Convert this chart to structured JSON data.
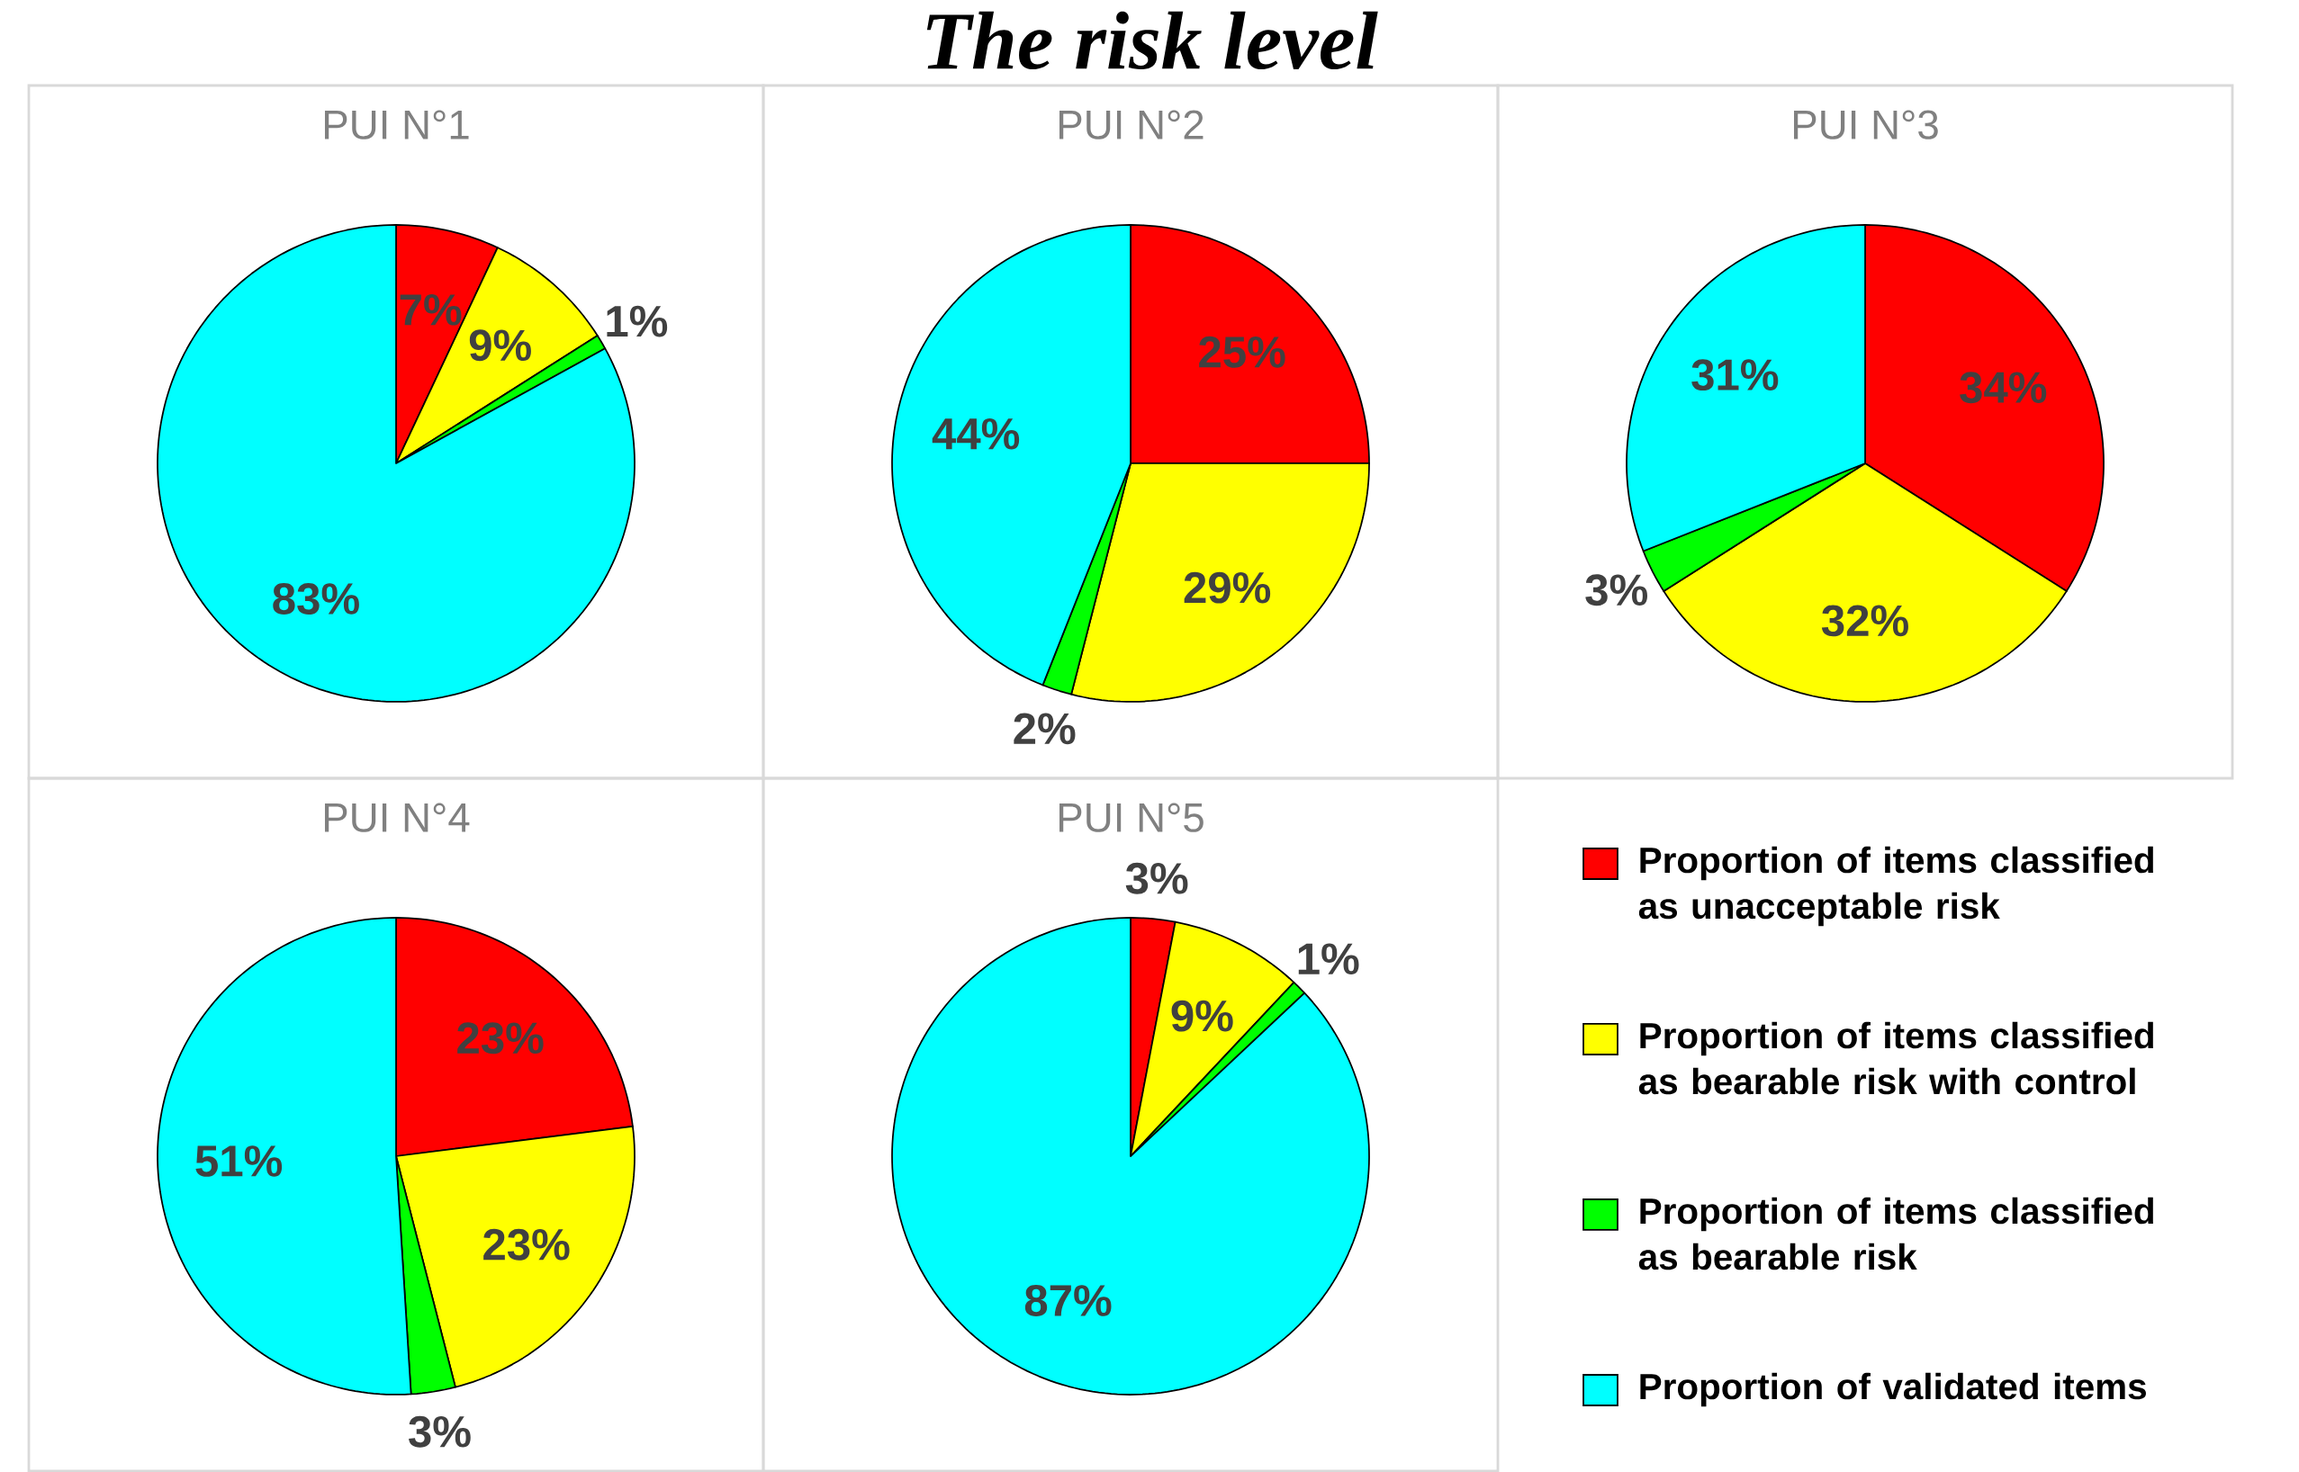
{
  "chart_data": [
    {
      "type": "other",
      "title": "The risk level"
    },
    {
      "type": "pie",
      "title": "PUI N°1",
      "categories": [
        null,
        null,
        null,
        null
      ],
      "values": [
        7,
        9,
        1,
        83
      ],
      "value_labels": [
        "7%",
        "9%",
        "1%",
        "83%"
      ],
      "colors": [
        "#ff0000",
        "#ffff00",
        "#00ff00",
        "#00ffff"
      ]
    },
    {
      "type": "pie",
      "title": "PUI N°2",
      "categories": [
        null,
        null,
        null,
        null
      ],
      "values": [
        25,
        29,
        2,
        44
      ],
      "value_labels": [
        "25%",
        "29%",
        "2%",
        "44%"
      ],
      "colors": [
        "#ff0000",
        "#ffff00",
        "#00ff00",
        "#00ffff"
      ]
    },
    {
      "type": "pie",
      "title": "PUI N°3",
      "categories": [
        null,
        null,
        null,
        null
      ],
      "values": [
        34,
        32,
        3,
        31
      ],
      "value_labels": [
        "34%",
        "32%",
        "3%",
        "31%"
      ],
      "colors": [
        "#ff0000",
        "#ffff00",
        "#00ff00",
        "#00ffff"
      ]
    },
    {
      "type": "pie",
      "title": "PUI N°4",
      "categories": [
        null,
        null,
        null,
        null
      ],
      "values": [
        23,
        23,
        3,
        51
      ],
      "value_labels": [
        "23%",
        "23%",
        "3%",
        "51%"
      ],
      "colors": [
        "#ff0000",
        "#ffff00",
        "#00ff00",
        "#00ffff"
      ]
    },
    {
      "type": "pie",
      "title": "PUI N°5",
      "categories": [
        "Proportion of items classified as unacceptable risk",
        "Proportion of items classified as bearable risk with control",
        "Proportion of items classified as bearable risk",
        "Proportion of validated items"
      ],
      "values": [
        3,
        9,
        1,
        87
      ],
      "value_labels": [
        "3%",
        "9%",
        "1%",
        "87%"
      ],
      "colors": [
        "#ff0000",
        "#ffff00",
        "#00ff00",
        "#00ffff"
      ],
      "legend": "right"
    }
  ]
}
